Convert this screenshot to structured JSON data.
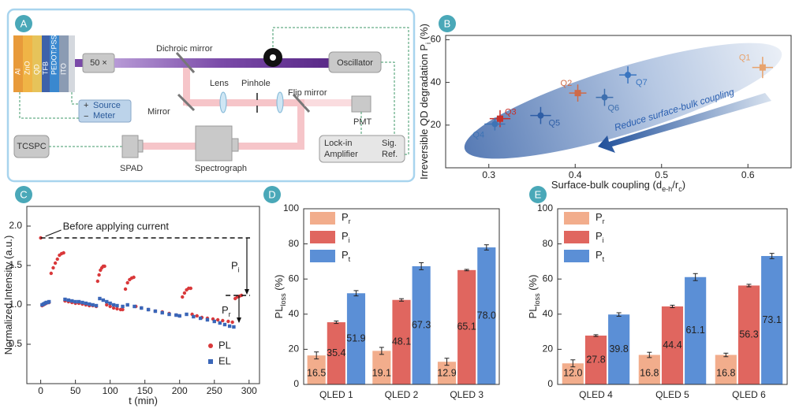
{
  "diagram": {
    "label": "A",
    "layers": [
      "Al",
      "ZnO",
      "QD",
      "TFB",
      "PEDOT:PSS",
      "ITO"
    ],
    "objective": "50 ×",
    "dichroic_mirror": "Dichroic mirror",
    "oscillator": "Oscillator",
    "lens": "Lens",
    "pinhole": "Pinhole",
    "flip_mirror": "Flip mirror",
    "mirror": "Mirror",
    "pmt": "PMT",
    "source_meter": [
      "Source",
      "Meter"
    ],
    "polarity": [
      "+",
      "−"
    ],
    "tcspc": "TCSPC",
    "spad": "SPAD",
    "spectrograph": "Spectrograph",
    "lockin": [
      "Lock-in",
      "Amplifier"
    ],
    "sig_ref": [
      "Sig.",
      "Ref."
    ]
  },
  "chart_data": [
    {
      "type": "scatter",
      "label": "B",
      "ylabel": [
        "Irreversible QD degradation P",
        "i",
        " (%)"
      ],
      "xlabel": [
        "Surface-bulk coupling (d",
        "e-h",
        "/r",
        "c",
        ")"
      ],
      "xlim": [
        0.25,
        0.65
      ],
      "ylim": [
        0,
        62
      ],
      "xticks": [
        0.3,
        0.4,
        0.5,
        0.6
      ],
      "yticks": [
        20,
        40,
        60
      ],
      "annotation": "Reduce surface-bulk coupling",
      "series": [
        {
          "name": "Q1",
          "color": "#e8a36d",
          "marker": "square",
          "x": [
            0.617
          ],
          "values": [
            47
          ],
          "xerr": [
            0.012
          ],
          "yerr": [
            5
          ]
        },
        {
          "name": "Q2",
          "color": "#cf6a48",
          "marker": "square",
          "x": [
            0.403
          ],
          "values": [
            35
          ],
          "xerr": [
            0.01
          ],
          "yerr": [
            4
          ]
        },
        {
          "name": "Q3",
          "color": "#c8312b",
          "marker": "square",
          "x": [
            0.313
          ],
          "values": [
            23
          ],
          "xerr": [
            0.012
          ],
          "yerr": [
            4
          ]
        },
        {
          "name": "Q4",
          "color": "#3d73b5",
          "marker": "circle",
          "x": [
            0.307
          ],
          "values": [
            20.5
          ],
          "xerr": [
            0.012
          ],
          "yerr": [
            3
          ]
        },
        {
          "name": "Q5",
          "color": "#2e5ea6",
          "marker": "circle",
          "x": [
            0.36
          ],
          "values": [
            24.5
          ],
          "xerr": [
            0.012
          ],
          "yerr": [
            4
          ]
        },
        {
          "name": "Q6",
          "color": "#3e6fae",
          "marker": "circle",
          "x": [
            0.434
          ],
          "values": [
            33
          ],
          "xerr": [
            0.01
          ],
          "yerr": [
            4
          ]
        },
        {
          "name": "Q7",
          "color": "#3a75c0",
          "marker": "circle",
          "x": [
            0.461
          ],
          "values": [
            43.5
          ],
          "xerr": [
            0.01
          ],
          "yerr": [
            4
          ]
        }
      ]
    },
    {
      "type": "scatter",
      "label": "C",
      "ylabel": [
        "Normalized Intensity (a.u.)"
      ],
      "xlabel": [
        "t (min)"
      ],
      "xlim": [
        -20,
        315
      ],
      "ylim": [
        0,
        2.25
      ],
      "xticks": [
        0,
        50,
        100,
        150,
        200,
        250,
        300
      ],
      "yticks": [
        0.5,
        {
          "value": 1,
          "label": "1.0"
        },
        1.5,
        {
          "value": 2,
          "label": "2.0"
        }
      ],
      "annotation": "Before applying current",
      "pi": [
        "P",
        "i"
      ],
      "pr": [
        "P",
        "r"
      ],
      "legend": "lower right",
      "series": [
        {
          "name": "PL",
          "color": "#d9383a",
          "marker": "circle",
          "x": [
            0,
            2,
            4,
            6,
            8,
            10,
            12,
            15,
            18,
            21,
            24,
            27,
            30,
            33,
            35,
            40,
            45,
            50,
            55,
            60,
            65,
            70,
            75,
            80,
            82,
            84,
            86,
            88,
            90,
            92,
            95,
            100,
            105,
            110,
            115,
            118,
            122,
            125,
            128,
            131,
            134,
            137,
            145,
            155,
            165,
            175,
            185,
            195,
            200,
            204,
            207,
            210,
            213,
            216,
            218,
            225,
            232,
            240,
            248,
            255,
            262,
            270,
            276,
            280,
            283,
            286,
            289
          ],
          "values": [
            1.85,
            0.99,
            1.0,
            1.01,
            1.02,
            1.03,
            1.03,
            1.4,
            1.47,
            1.53,
            1.58,
            1.63,
            1.65,
            1.66,
            1.05,
            1.04,
            1.03,
            1.02,
            1.02,
            1.01,
            1.0,
            0.99,
            0.99,
            0.98,
            1.3,
            1.38,
            1.44,
            1.47,
            1.49,
            1.49,
            1.0,
            0.98,
            0.96,
            0.95,
            0.94,
            0.94,
            1.2,
            1.28,
            1.32,
            1.34,
            1.35,
            0.98,
            0.96,
            0.94,
            0.92,
            0.91,
            0.89,
            0.87,
            0.86,
            1.1,
            1.15,
            1.19,
            1.21,
            1.21,
            0.88,
            0.86,
            0.84,
            0.83,
            0.82,
            0.81,
            0.8,
            0.79,
            0.78,
            1.08,
            1.1,
            1.11,
            1.12
          ]
        },
        {
          "name": "EL",
          "color": "#3a66b8",
          "marker": "square",
          "x": [
            2,
            4,
            6,
            8,
            10,
            12,
            35,
            40,
            45,
            50,
            55,
            60,
            65,
            70,
            75,
            80,
            85,
            90,
            95,
            100,
            105,
            110,
            118,
            125,
            135,
            145,
            155,
            165,
            175,
            185,
            195,
            200,
            210,
            220,
            230,
            240,
            250,
            258,
            265,
            272,
            278
          ],
          "values": [
            1.0,
            1.01,
            1.02,
            1.03,
            1.03,
            1.04,
            1.07,
            1.06,
            1.05,
            1.04,
            1.04,
            1.03,
            1.02,
            1.01,
            1.0,
            0.99,
            1.08,
            1.06,
            1.04,
            1.02,
            1.0,
            0.99,
            0.98,
            1.0,
            0.98,
            0.96,
            0.94,
            0.92,
            0.9,
            0.88,
            0.87,
            0.86,
            0.88,
            0.85,
            0.83,
            0.81,
            0.79,
            0.77,
            0.75,
            0.73,
            0.72
          ]
        }
      ]
    },
    {
      "type": "bar",
      "label": "D",
      "ylabel": [
        "PL",
        "loss",
        " (%)"
      ],
      "categories": [
        "QLED 1",
        "QLED 2",
        "QLED 3"
      ],
      "ylim": [
        0,
        100
      ],
      "yticks": [
        0,
        20,
        40,
        60,
        80,
        100
      ],
      "legend": "upper left",
      "series": [
        {
          "name": "Pr",
          "color": "#f2ad8c",
          "values": [
            16.5,
            19.1,
            12.9
          ],
          "errors": [
            2,
            2,
            2
          ]
        },
        {
          "name": "Pi",
          "color": "#e0665f",
          "values": [
            35.4,
            48.1,
            65.1
          ],
          "errors": [
            0.7,
            0.7,
            0.4
          ]
        },
        {
          "name": "Pt",
          "color": "#5b8fd6",
          "values": [
            51.9,
            67.3,
            78.0
          ],
          "value_labels": [
            "51.9",
            "67.3",
            "78.0"
          ],
          "errors": [
            1.5,
            2,
            1.5
          ]
        }
      ]
    },
    {
      "type": "bar",
      "label": "E",
      "ylabel": [
        "PL",
        "loss",
        " (%)"
      ],
      "categories": [
        "QLED 4",
        "QLED 5",
        "QLED 6"
      ],
      "ylim": [
        0,
        100
      ],
      "yticks": [
        0,
        20,
        40,
        60,
        80,
        100
      ],
      "legend": "upper left",
      "series": [
        {
          "name": "Pr",
          "color": "#f2ad8c",
          "values": [
            12.0,
            16.8,
            16.8
          ],
          "value_labels": [
            "12.0",
            "16.8",
            "16.8"
          ],
          "errors": [
            2,
            1.5,
            1
          ]
        },
        {
          "name": "Pi",
          "color": "#e0665f",
          "values": [
            27.8,
            44.4,
            56.3
          ],
          "errors": [
            0.5,
            0.7,
            0.7
          ]
        },
        {
          "name": "Pt",
          "color": "#5b8fd6",
          "values": [
            39.8,
            61.1,
            73.1
          ],
          "errors": [
            1,
            2,
            1.5
          ]
        }
      ]
    }
  ]
}
